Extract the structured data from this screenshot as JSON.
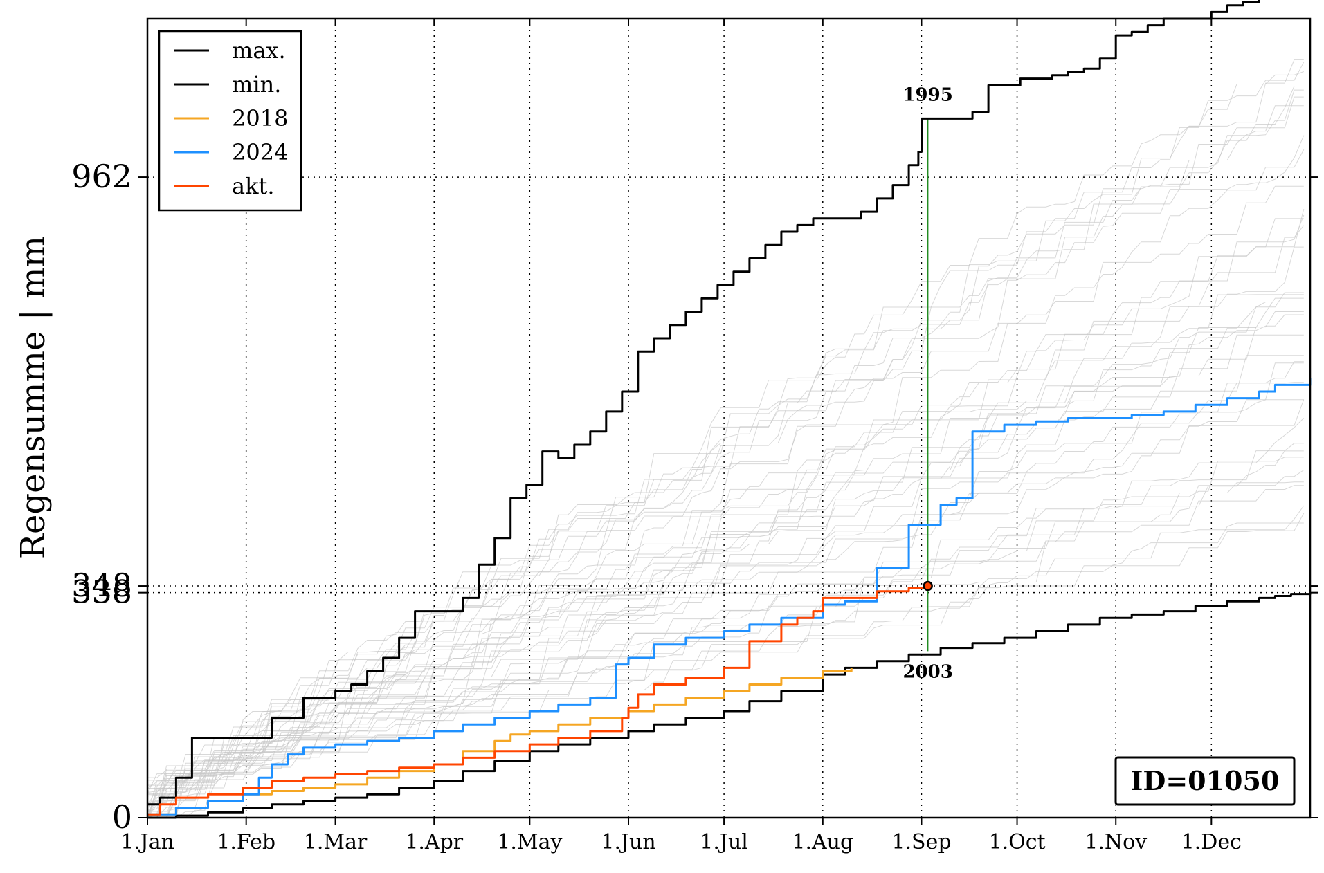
{
  "chart_data": {
    "type": "line",
    "ylabel": "Regensumme | mm",
    "xlabel": "",
    "x_unit": "day of year",
    "x_range": [
      1,
      366
    ],
    "y_range": [
      0,
      1200
    ],
    "x_ticks": [
      {
        "label": "1.Jan",
        "day": 1
      },
      {
        "label": "1.Feb",
        "day": 32
      },
      {
        "label": "1.Mar",
        "day": 60
      },
      {
        "label": "1.Apr",
        "day": 91
      },
      {
        "label": "1.May",
        "day": 121
      },
      {
        "label": "1.Jun",
        "day": 152
      },
      {
        "label": "1.Jul",
        "day": 182
      },
      {
        "label": "1.Aug",
        "day": 213
      },
      {
        "label": "1.Sep",
        "day": 244
      },
      {
        "label": "1.Oct",
        "day": 274
      },
      {
        "label": "1.Nov",
        "day": 305
      },
      {
        "label": "1.Dec",
        "day": 335
      }
    ],
    "y_ticks": [
      {
        "label": "0",
        "value": 0
      },
      {
        "label": "338",
        "value": 338
      },
      {
        "label": "348",
        "value": 348
      },
      {
        "label": "962",
        "value": 962
      }
    ],
    "legend": {
      "position": "top-left",
      "entries": [
        {
          "label": "max.",
          "color": "#000000"
        },
        {
          "label": "min.",
          "color": "#000000"
        },
        {
          "label": "2018",
          "color": "#f5a623"
        },
        {
          "label": "2024",
          "color": "#1e90ff"
        },
        {
          "label": "akt.",
          "color": "#ff4500"
        }
      ]
    },
    "series": [
      {
        "name": "max.",
        "color": "#000000",
        "x": [
          1,
          5,
          10,
          15,
          20,
          25,
          31,
          40,
          50,
          60,
          65,
          70,
          75,
          80,
          85,
          90,
          95,
          100,
          105,
          110,
          115,
          120,
          125,
          130,
          135,
          140,
          145,
          150,
          155,
          160,
          165,
          170,
          175,
          180,
          185,
          190,
          195,
          200,
          205,
          210,
          215,
          220,
          225,
          230,
          235,
          240,
          243,
          244,
          250,
          255,
          257,
          260,
          265,
          270,
          275,
          280,
          285,
          290,
          295,
          300,
          305,
          310,
          315,
          320,
          325,
          330,
          335,
          340,
          345,
          350,
          355,
          360,
          366
        ],
        "y": [
          20,
          30,
          60,
          120,
          120,
          120,
          120,
          150,
          180,
          190,
          200,
          220,
          240,
          270,
          310,
          310,
          310,
          330,
          380,
          420,
          480,
          500,
          550,
          540,
          560,
          580,
          610,
          640,
          700,
          720,
          740,
          760,
          780,
          800,
          820,
          840,
          860,
          880,
          890,
          900,
          900,
          900,
          910,
          930,
          950,
          980,
          1000,
          1050,
          1050,
          1050,
          1050,
          1060,
          1100,
          1100,
          1110,
          1110,
          1115,
          1120,
          1125,
          1140,
          1175,
          1180,
          1190,
          1200,
          1200,
          1200,
          1210,
          1220,
          1225,
          1230,
          1235,
          1240,
          1243
        ]
      },
      {
        "name": "min.",
        "color": "#000000",
        "x": [
          1,
          10,
          20,
          31,
          40,
          50,
          60,
          70,
          80,
          91,
          100,
          110,
          121,
          130,
          140,
          152,
          160,
          170,
          182,
          190,
          200,
          213,
          220,
          230,
          240,
          250,
          260,
          270,
          280,
          290,
          300,
          310,
          320,
          330,
          340,
          350,
          355,
          360,
          366
        ],
        "y": [
          0,
          3,
          8,
          14,
          20,
          25,
          30,
          35,
          45,
          55,
          70,
          85,
          100,
          110,
          120,
          130,
          140,
          150,
          160,
          175,
          190,
          215,
          225,
          235,
          245,
          255,
          262,
          270,
          280,
          290,
          300,
          305,
          310,
          318,
          325,
          330,
          333,
          336,
          338
        ]
      },
      {
        "name": "2018",
        "color": "#f5a623",
        "x": [
          1,
          10,
          20,
          31,
          40,
          50,
          60,
          70,
          80,
          91,
          100,
          110,
          115,
          121,
          130,
          140,
          152,
          160,
          170,
          182,
          190,
          200,
          213,
          222
        ],
        "y": [
          5,
          15,
          25,
          35,
          40,
          45,
          50,
          60,
          70,
          80,
          100,
          115,
          125,
          130,
          140,
          150,
          160,
          170,
          180,
          190,
          200,
          210,
          220,
          225
        ]
      },
      {
        "name": "2024",
        "color": "#1e90ff",
        "x": [
          1,
          10,
          20,
          31,
          36,
          40,
          45,
          50,
          60,
          70,
          80,
          91,
          100,
          110,
          121,
          130,
          140,
          148,
          152,
          160,
          170,
          182,
          190,
          200,
          213,
          220,
          230,
          240,
          250,
          255,
          260,
          270,
          280,
          290,
          300,
          310,
          320,
          330,
          340,
          350,
          355,
          366
        ],
        "y": [
          5,
          15,
          25,
          35,
          60,
          80,
          95,
          105,
          110,
          115,
          120,
          130,
          140,
          150,
          160,
          170,
          180,
          230,
          240,
          260,
          270,
          280,
          290,
          300,
          320,
          325,
          375,
          440,
          470,
          480,
          580,
          590,
          595,
          600,
          600,
          605,
          610,
          620,
          630,
          640,
          650,
          660
        ]
      },
      {
        "name": "akt.",
        "color": "#ff4500",
        "x": [
          1,
          5,
          10,
          20,
          31,
          40,
          50,
          60,
          70,
          80,
          91,
          100,
          110,
          121,
          130,
          140,
          150,
          152,
          155,
          160,
          170,
          182,
          190,
          200,
          205,
          210,
          213,
          220,
          230,
          240,
          246
        ],
        "y": [
          5,
          20,
          30,
          35,
          45,
          55,
          60,
          65,
          70,
          75,
          80,
          90,
          100,
          110,
          120,
          130,
          150,
          165,
          185,
          200,
          210,
          225,
          265,
          290,
          300,
          310,
          330,
          330,
          340,
          345,
          348
        ]
      }
    ],
    "markers": [
      {
        "x": 246,
        "y": 348,
        "color": "#ff4500",
        "outline": "#000000"
      }
    ],
    "annotations": [
      {
        "text": "1995",
        "x": 246,
        "y": 1050,
        "position": "above"
      },
      {
        "text": "2003",
        "x": 246,
        "y": 250,
        "position": "below"
      }
    ],
    "reference_lines": [
      {
        "axis": "y",
        "value": 962
      },
      {
        "axis": "y",
        "value": 348
      },
      {
        "axis": "y",
        "value": 338
      },
      {
        "axis": "x",
        "value": 246,
        "y_from": 250,
        "y_to": 1050,
        "color": "#228b22"
      }
    ],
    "grid": true,
    "id_box": "ID=01050"
  }
}
